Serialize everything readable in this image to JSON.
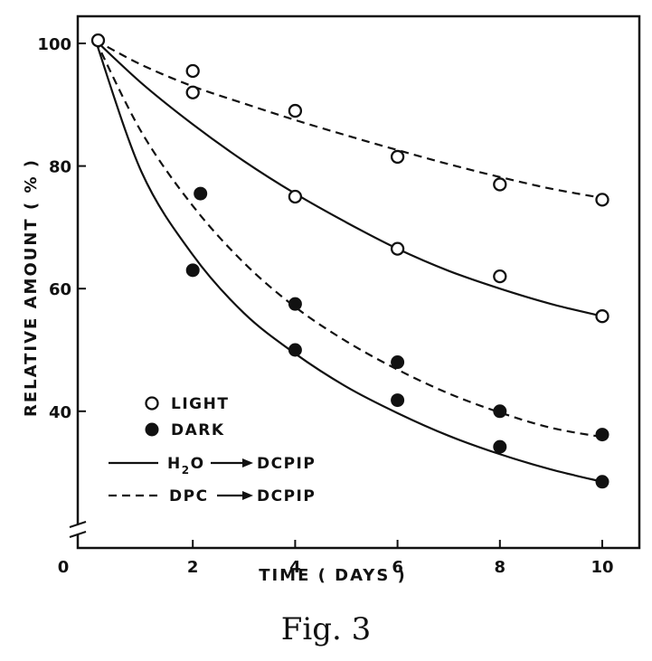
{
  "caption": "Fig.  3",
  "chart_data": {
    "type": "line",
    "xlabel": "TIME ( DAYS )",
    "ylabel": "RELATIVE AMOUNT ( % )",
    "xlim": [
      0,
      10.5
    ],
    "ylim": [
      20,
      105
    ],
    "x_ticks": [
      0,
      2,
      4,
      6,
      8,
      10
    ],
    "y_ticks": [
      40,
      60,
      80,
      100
    ],
    "x_tick_labels": [
      "0",
      "2",
      "4",
      "6",
      "8",
      "10"
    ],
    "y_tick_labels": [
      "40",
      "60",
      "80",
      "100"
    ],
    "y_axis_break": true,
    "legend": {
      "markers": [
        {
          "label": "LIGHT",
          "marker": "open-circle"
        },
        {
          "label": "DARK",
          "marker": "filled-circle"
        }
      ],
      "lines": [
        {
          "style": "solid",
          "label_prefix": "H",
          "label_sub": "2",
          "label_suffix": "O",
          "arrow_to": "DCPIP"
        },
        {
          "style": "dashed",
          "label_prefix": "DPC",
          "label_sub": "",
          "label_suffix": "",
          "arrow_to": "DCPIP"
        }
      ]
    },
    "series": [
      {
        "condition": "light",
        "line_style": "dashed",
        "marker": "open",
        "points": [
          [
            0.15,
            100.5
          ],
          [
            2,
            95.5
          ],
          [
            2,
            92
          ],
          [
            4,
            89
          ],
          [
            6,
            81.5
          ],
          [
            8,
            77
          ],
          [
            10,
            74.5
          ]
        ],
        "curve": [
          [
            0.1,
            100.5
          ],
          [
            1,
            96.5
          ],
          [
            2,
            93
          ],
          [
            3,
            90.2
          ],
          [
            4,
            87.5
          ],
          [
            5,
            85.0
          ],
          [
            6,
            82.6
          ],
          [
            7,
            80.3
          ],
          [
            8,
            78.2
          ],
          [
            9,
            76.3
          ],
          [
            10,
            74.8
          ]
        ]
      },
      {
        "condition": "light",
        "line_style": "solid",
        "marker": "open",
        "points": [
          [
            4,
            75
          ],
          [
            6,
            66.5
          ],
          [
            8,
            62
          ],
          [
            10,
            55.5
          ]
        ],
        "curve": [
          [
            0.1,
            100.5
          ],
          [
            1,
            93.5
          ],
          [
            2,
            86.8
          ],
          [
            3,
            80.8
          ],
          [
            4,
            75.5
          ],
          [
            5,
            70.8
          ],
          [
            6,
            66.5
          ],
          [
            7,
            62.9
          ],
          [
            8,
            60.0
          ],
          [
            9,
            57.5
          ],
          [
            10,
            55.5
          ]
        ]
      },
      {
        "condition": "dark",
        "line_style": "dashed",
        "marker": "filled",
        "points": [
          [
            2.15,
            75.5
          ],
          [
            4,
            57.5
          ],
          [
            6,
            48
          ],
          [
            8,
            40
          ],
          [
            10,
            36.2
          ]
        ],
        "curve": [
          [
            0.1,
            100.5
          ],
          [
            1,
            85.5
          ],
          [
            2,
            73.5
          ],
          [
            3,
            64.2
          ],
          [
            4,
            57.0
          ],
          [
            5,
            51.4
          ],
          [
            6,
            46.8
          ],
          [
            7,
            42.9
          ],
          [
            8,
            39.8
          ],
          [
            9,
            37.3
          ],
          [
            10,
            35.8
          ]
        ]
      },
      {
        "condition": "dark",
        "line_style": "solid",
        "marker": "filled",
        "points": [
          [
            2,
            63
          ],
          [
            4,
            50
          ],
          [
            6,
            41.8
          ],
          [
            8,
            34.2
          ],
          [
            10,
            28.5
          ]
        ],
        "curve": [
          [
            0.1,
            100.5
          ],
          [
            1,
            79.0
          ],
          [
            2,
            65.5
          ],
          [
            3,
            56.0
          ],
          [
            4,
            49.4
          ],
          [
            5,
            44.0
          ],
          [
            6,
            39.7
          ],
          [
            7,
            36.0
          ],
          [
            8,
            33.0
          ],
          [
            9,
            30.5
          ],
          [
            10,
            28.5
          ]
        ]
      }
    ]
  }
}
